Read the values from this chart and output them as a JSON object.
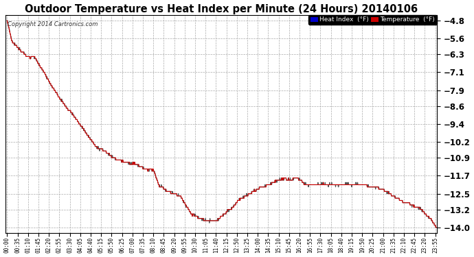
{
  "title": "Outdoor Temperature vs Heat Index per Minute (24 Hours) 20140106",
  "copyright": "Copyright 2014 Cartronics.com",
  "background_color": "#ffffff",
  "plot_background_color": "#ffffff",
  "grid_color": "#aaaaaa",
  "ylim": [
    -14.25,
    -4.55
  ],
  "yticks": [
    -4.8,
    -5.6,
    -6.3,
    -7.1,
    -7.9,
    -8.6,
    -9.4,
    -10.2,
    -10.9,
    -11.7,
    -12.5,
    -13.2,
    -14.0
  ],
  "heat_index_legend_bg": "#0000cc",
  "temp_legend_bg": "#cc0000",
  "x_tick_labels": [
    "00:00",
    "00:35",
    "01:10",
    "01:45",
    "02:20",
    "02:55",
    "03:30",
    "04:05",
    "04:40",
    "05:15",
    "05:50",
    "06:25",
    "07:00",
    "07:35",
    "08:10",
    "08:45",
    "09:20",
    "09:55",
    "10:30",
    "11:05",
    "11:40",
    "12:15",
    "12:50",
    "13:25",
    "14:00",
    "14:35",
    "15:10",
    "15:45",
    "16:20",
    "16:55",
    "17:30",
    "18:05",
    "18:40",
    "19:15",
    "19:50",
    "20:25",
    "21:00",
    "21:35",
    "22:10",
    "22:45",
    "23:20",
    "23:55"
  ],
  "n_points": 1440,
  "seed": 42
}
